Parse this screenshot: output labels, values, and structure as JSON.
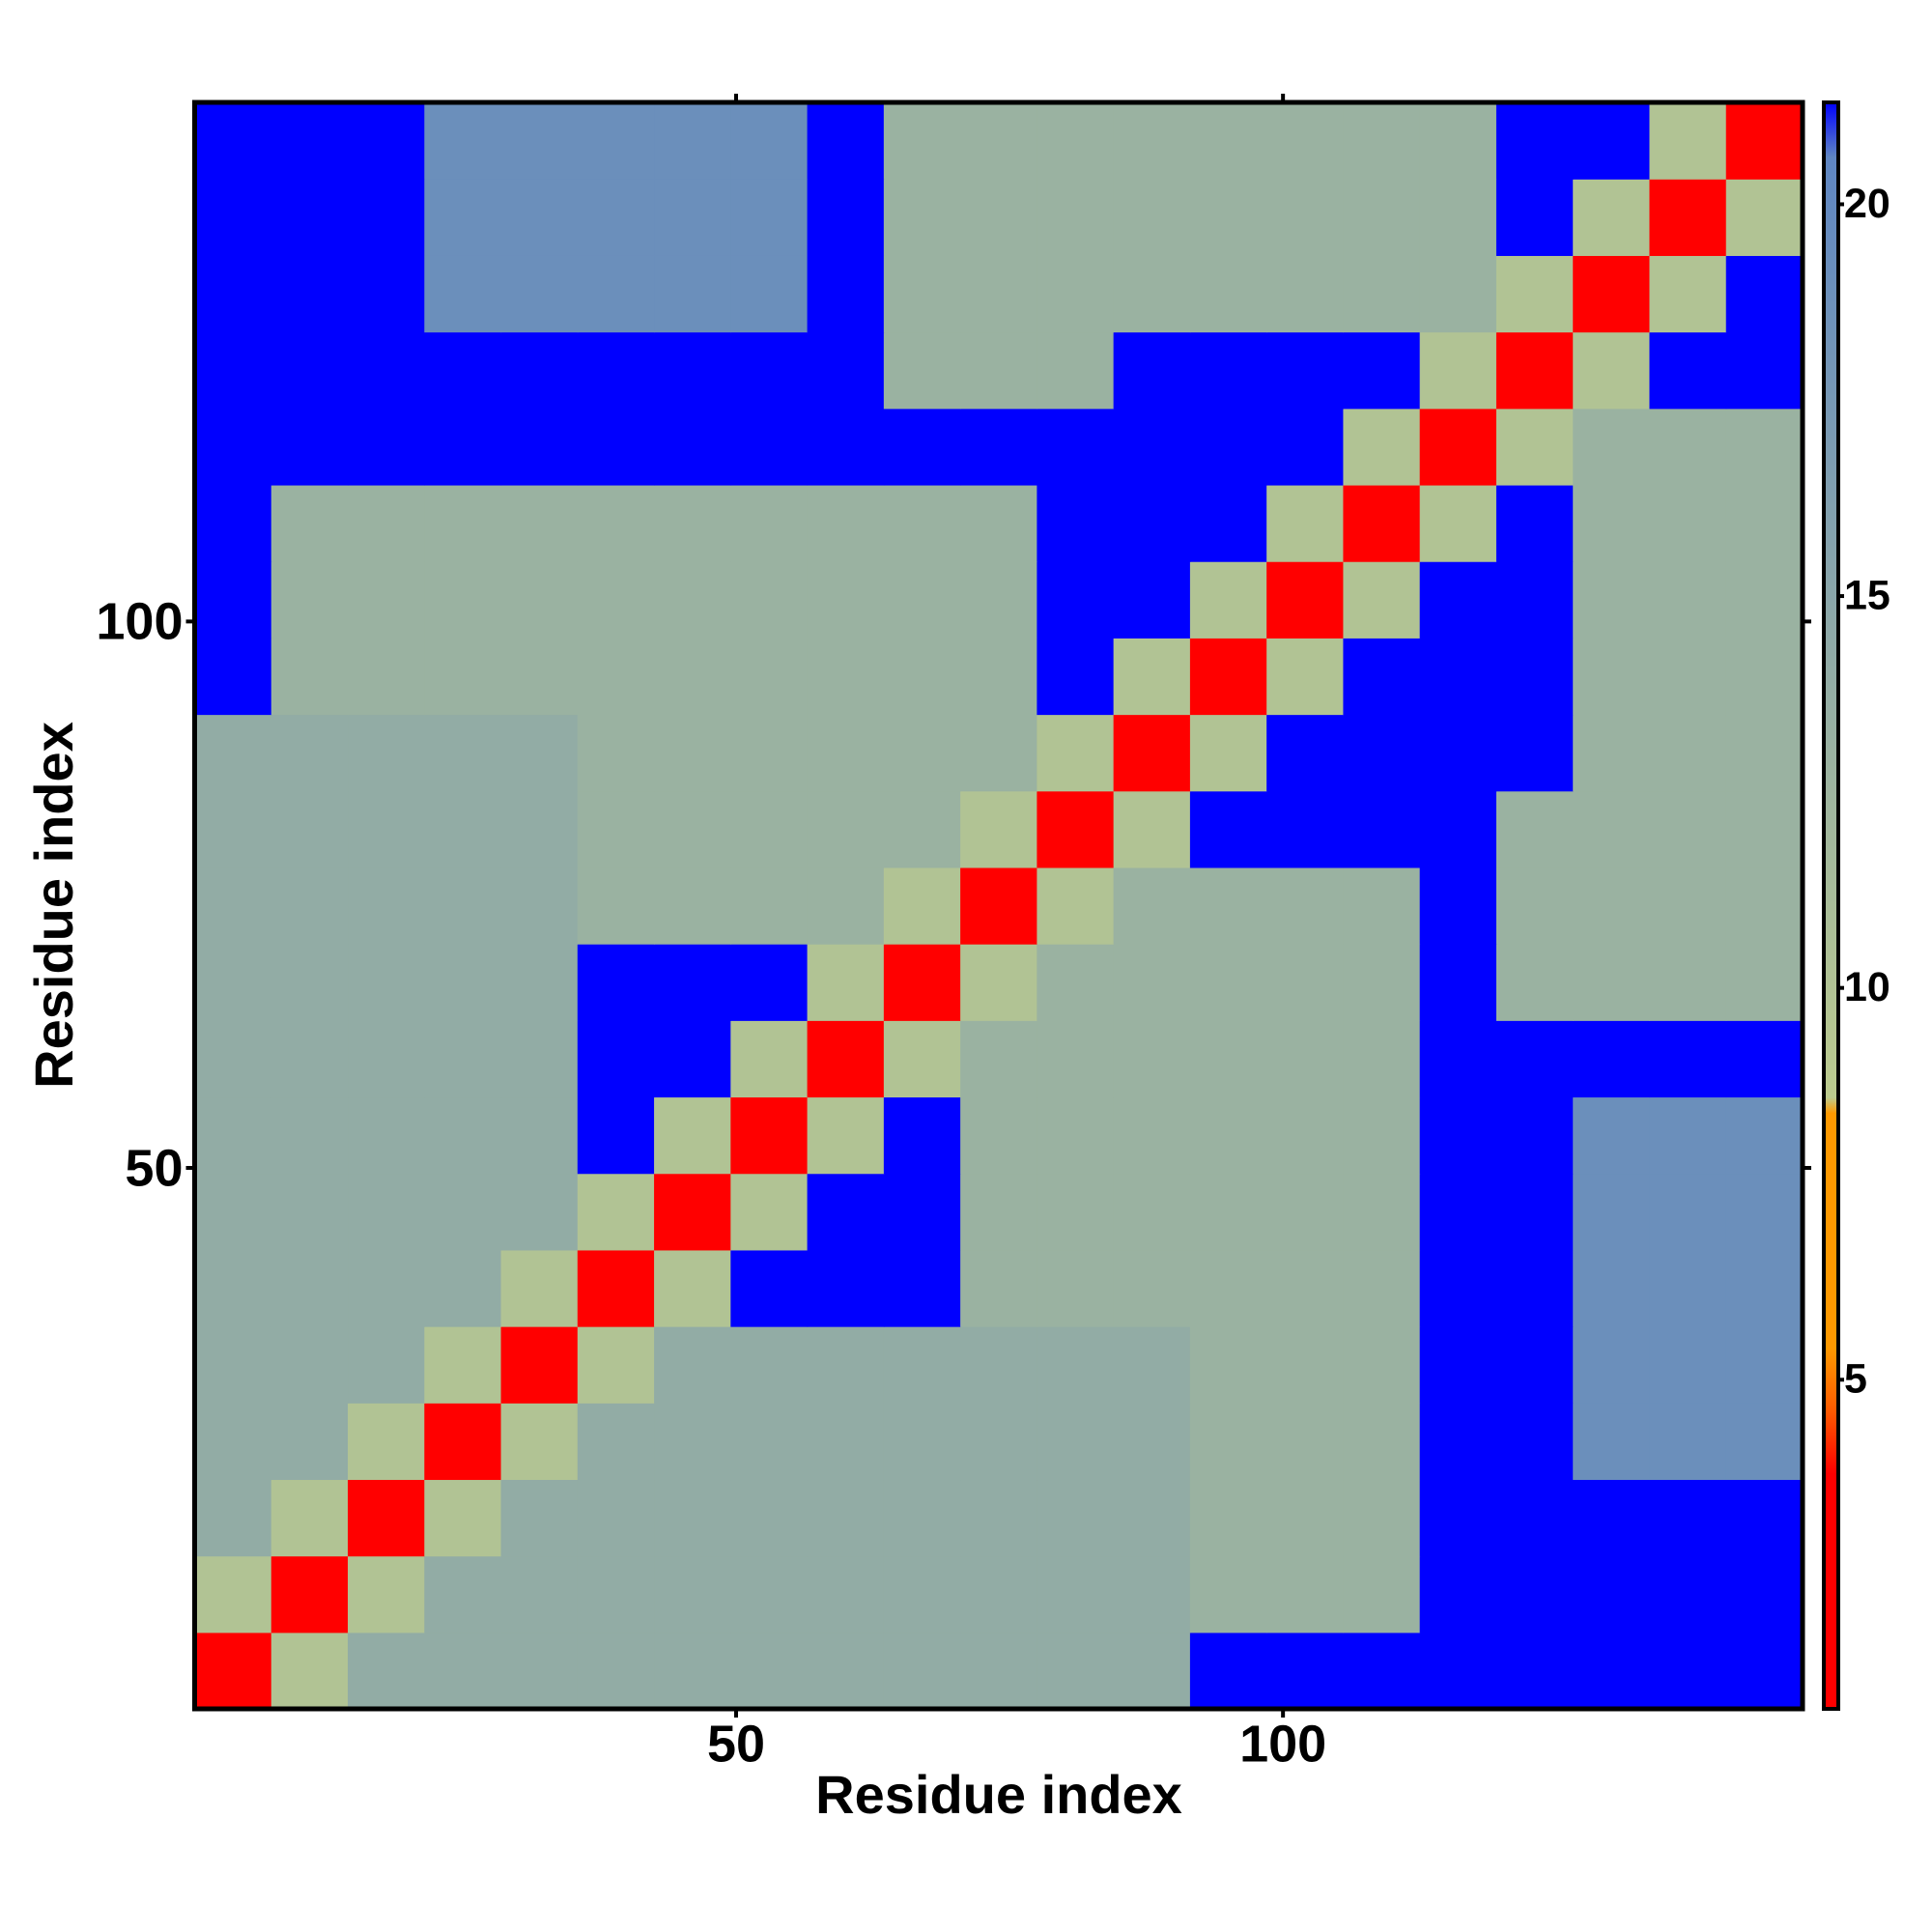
{
  "chart_data": {
    "type": "heatmap",
    "x_label": "Residue index",
    "y_label": "Residue index",
    "xlim": [
      0.5,
      147.5
    ],
    "ylim": [
      0.5,
      147.5
    ],
    "xticks": [
      50,
      100
    ],
    "yticks": [
      50,
      100
    ],
    "xbins": [
      0.5,
      7.5,
      14.5,
      21.5,
      28.5,
      35.5,
      42.5,
      49.5,
      56.5,
      63.5,
      70.5,
      77.5,
      84.5,
      91.5,
      98.5,
      105.5,
      112.5,
      119.5,
      126.5,
      133.5,
      140.5,
      147.5
    ],
    "ybins": [
      0.5,
      7.5,
      14.5,
      21.5,
      28.5,
      35.5,
      42.5,
      49.5,
      56.5,
      63.5,
      70.5,
      77.5,
      84.5,
      91.5,
      98.5,
      105.5,
      112.5,
      119.5,
      126.5,
      133.5,
      140.5,
      147.5
    ],
    "z": [
      [
        3,
        10,
        14,
        14,
        14,
        14,
        14,
        14,
        14,
        14,
        14,
        14,
        14,
        22,
        22,
        22,
        22,
        22,
        22,
        22,
        22
      ],
      [
        10,
        3,
        10,
        14,
        14,
        14,
        14,
        14,
        14,
        14,
        14,
        14,
        14,
        13,
        13,
        13,
        22,
        22,
        22,
        22,
        22
      ],
      [
        14,
        10,
        3,
        10,
        14,
        14,
        14,
        14,
        14,
        14,
        14,
        14,
        14,
        13,
        13,
        13,
        22,
        22,
        22,
        22,
        22
      ],
      [
        14,
        14,
        10,
        3,
        10,
        14,
        14,
        14,
        14,
        14,
        14,
        14,
        14,
        13,
        13,
        13,
        22,
        22,
        19,
        19,
        19
      ],
      [
        14,
        14,
        14,
        10,
        3,
        10,
        14,
        14,
        14,
        14,
        14,
        14,
        14,
        13,
        13,
        13,
        22,
        22,
        19,
        19,
        19
      ],
      [
        14,
        14,
        14,
        14,
        10,
        3,
        10,
        22,
        22,
        22,
        13,
        13,
        13,
        13,
        13,
        13,
        22,
        22,
        19,
        19,
        19
      ],
      [
        14,
        14,
        14,
        14,
        14,
        10,
        3,
        10,
        22,
        22,
        13,
        13,
        13,
        13,
        13,
        13,
        22,
        22,
        19,
        19,
        19
      ],
      [
        14,
        14,
        14,
        14,
        14,
        22,
        10,
        3,
        10,
        22,
        13,
        13,
        13,
        13,
        13,
        13,
        22,
        22,
        19,
        19,
        19
      ],
      [
        14,
        14,
        14,
        14,
        14,
        22,
        22,
        10,
        3,
        10,
        13,
        13,
        13,
        13,
        13,
        13,
        22,
        22,
        22,
        22,
        22
      ],
      [
        14,
        14,
        14,
        14,
        14,
        22,
        22,
        22,
        10,
        3,
        10,
        13,
        13,
        13,
        13,
        13,
        22,
        13,
        13,
        13,
        13
      ],
      [
        14,
        14,
        14,
        14,
        14,
        13,
        13,
        13,
        13,
        10,
        3,
        10,
        13,
        13,
        13,
        13,
        22,
        13,
        13,
        13,
        13
      ],
      [
        14,
        14,
        14,
        14,
        14,
        13,
        13,
        13,
        13,
        13,
        10,
        3,
        10,
        22,
        22,
        22,
        22,
        13,
        13,
        13,
        13
      ],
      [
        14,
        14,
        14,
        14,
        14,
        13,
        13,
        13,
        13,
        13,
        13,
        10,
        3,
        10,
        22,
        22,
        22,
        22,
        13,
        13,
        13
      ],
      [
        22,
        13,
        13,
        13,
        13,
        13,
        13,
        13,
        13,
        13,
        13,
        22,
        10,
        3,
        10,
        22,
        22,
        22,
        13,
        13,
        13
      ],
      [
        22,
        13,
        13,
        13,
        13,
        13,
        13,
        13,
        13,
        13,
        13,
        22,
        22,
        10,
        3,
        10,
        22,
        22,
        13,
        13,
        13
      ],
      [
        22,
        13,
        13,
        13,
        13,
        13,
        13,
        13,
        13,
        13,
        13,
        22,
        22,
        22,
        10,
        3,
        10,
        22,
        13,
        13,
        13
      ],
      [
        22,
        22,
        22,
        22,
        22,
        22,
        22,
        22,
        22,
        22,
        22,
        22,
        22,
        22,
        22,
        10,
        3,
        10,
        13,
        13,
        13
      ],
      [
        22,
        22,
        22,
        22,
        22,
        22,
        22,
        22,
        22,
        13,
        13,
        13,
        22,
        22,
        22,
        22,
        10,
        3,
        10,
        22,
        22
      ],
      [
        22,
        22,
        22,
        19,
        19,
        19,
        19,
        19,
        22,
        13,
        13,
        13,
        13,
        13,
        13,
        13,
        13,
        10,
        3,
        10,
        22
      ],
      [
        22,
        22,
        22,
        19,
        19,
        19,
        19,
        19,
        22,
        13,
        13,
        13,
        13,
        13,
        13,
        13,
        13,
        22,
        10,
        3,
        10
      ],
      [
        22,
        22,
        22,
        19,
        19,
        19,
        19,
        19,
        22,
        13,
        13,
        13,
        13,
        13,
        13,
        13,
        13,
        22,
        22,
        10,
        3
      ]
    ],
    "colorscale": [
      [
        0.8,
        "#ff0000"
      ],
      [
        3.8,
        "#ff0000"
      ],
      [
        4.6,
        "#ff5a00"
      ],
      [
        5.4,
        "#ff9900"
      ],
      [
        8.4,
        "#ff9900"
      ],
      [
        8.6,
        "#bccb8e"
      ],
      [
        20.6,
        "#5f86c2"
      ],
      [
        21.3,
        "#0000ff"
      ]
    ],
    "colorbar": {
      "zlim": [
        0.8,
        21.3
      ],
      "ticks": [
        5,
        10,
        15,
        20
      ]
    }
  }
}
